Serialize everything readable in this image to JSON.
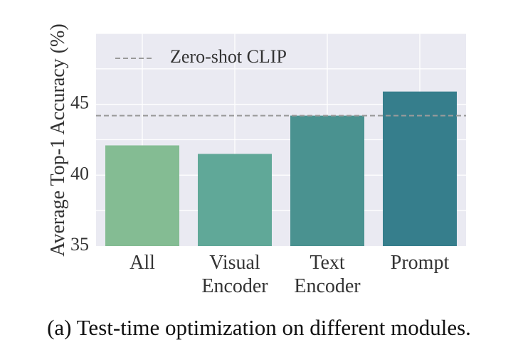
{
  "chart_data": {
    "type": "bar",
    "categories": [
      "All",
      "Visual Encoder",
      "Text Encoder",
      "Prompt"
    ],
    "category_lines": [
      [
        "All"
      ],
      [
        "Visual",
        "Encoder"
      ],
      [
        "Text",
        "Encoder"
      ],
      [
        "Prompt"
      ]
    ],
    "values": [
      42.1,
      41.5,
      44.2,
      45.9
    ],
    "bar_colors": [
      "#84bc93",
      "#60a898",
      "#4a9290",
      "#367e8c"
    ],
    "ylabel": "Average Top-1 Accuracy (%)",
    "ylim": [
      35,
      50
    ],
    "yticks": [
      35,
      40,
      45
    ],
    "grid": true,
    "reference_line": {
      "label": "Zero-shot CLIP",
      "value": 44.2,
      "color": "#9a9a9a",
      "style": "dashed"
    },
    "legend_position": "top-left",
    "background_color": "#eaeaf2"
  },
  "caption": "(a) Test-time optimization on different modules."
}
